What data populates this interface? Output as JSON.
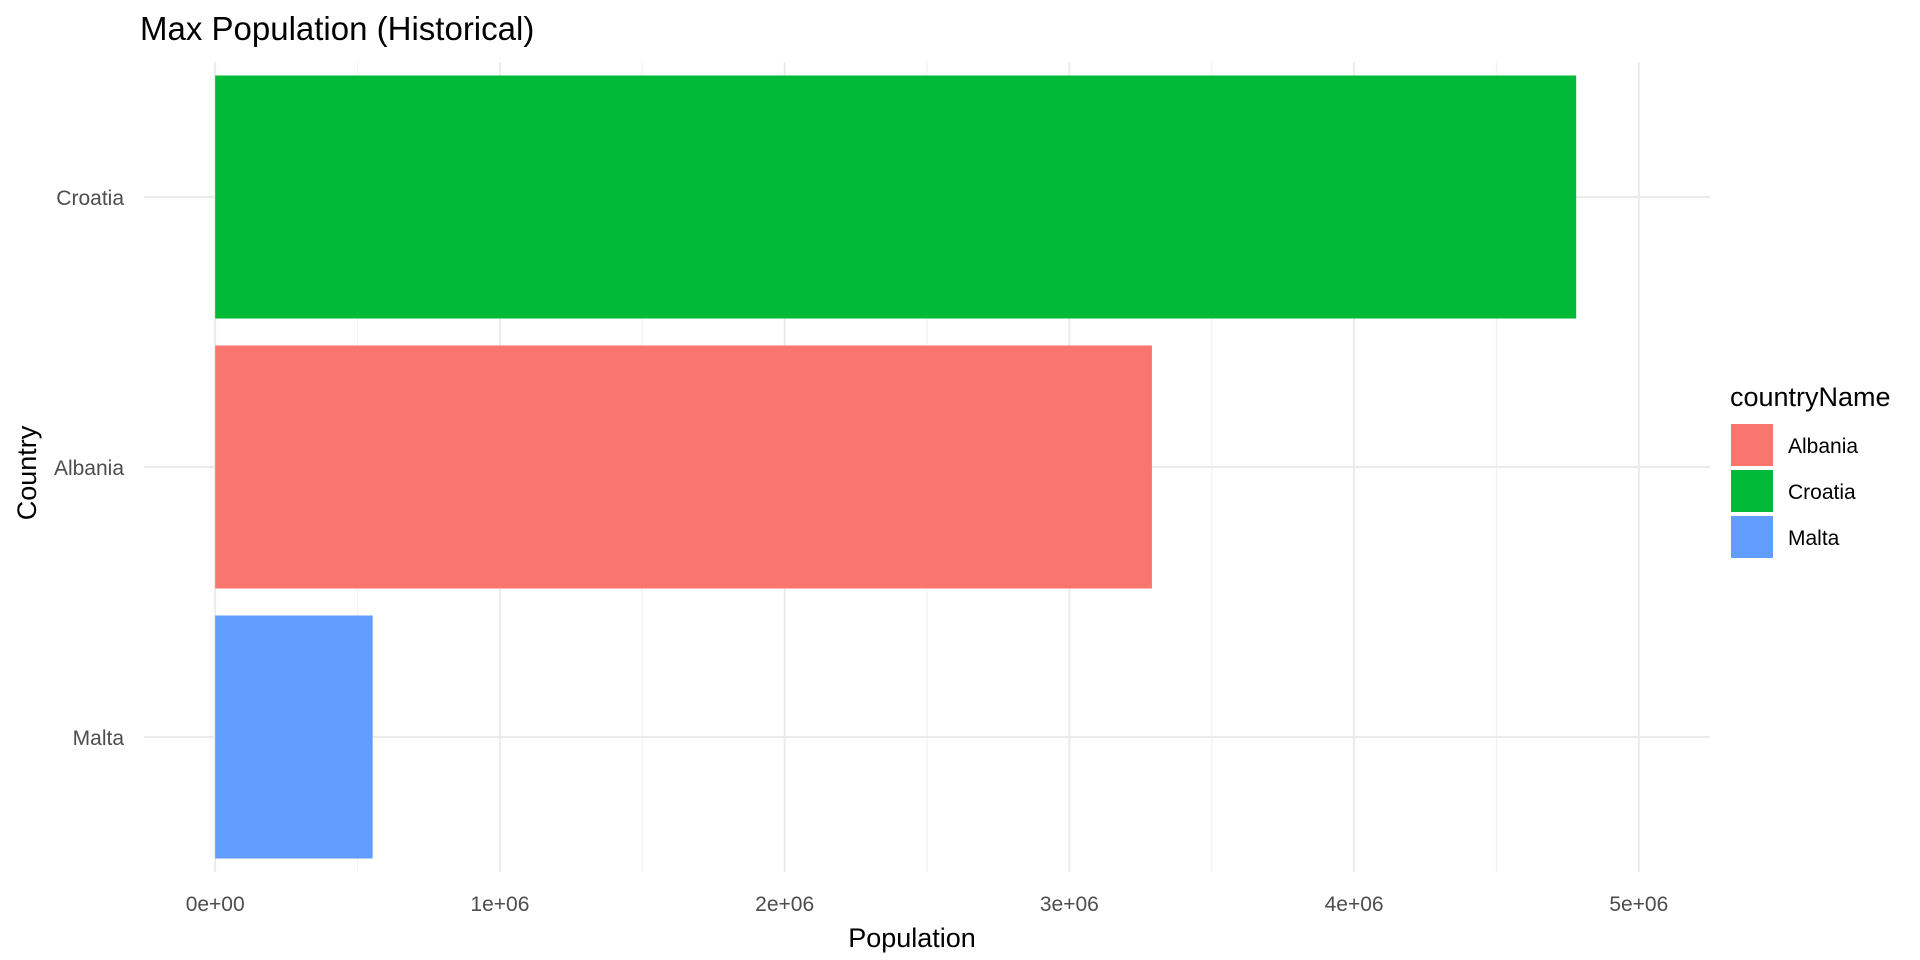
{
  "chart_data": {
    "type": "bar",
    "orientation": "horizontal",
    "title": "Max Population (Historical)",
    "xlabel": "Population",
    "ylabel": "Country",
    "categories": [
      "Malta",
      "Albania",
      "Croatia"
    ],
    "values": [
      553000,
      3290000,
      4780000
    ],
    "colors": {
      "Albania": "#F8766D",
      "Croatia": "#00BA38",
      "Malta": "#619CFF"
    },
    "xlim": [
      -250000,
      5250000
    ],
    "xticks": [
      0,
      1000000,
      2000000,
      3000000,
      4000000,
      5000000
    ],
    "xtick_labels": [
      "0e+00",
      "1e+06",
      "2e+06",
      "3e+06",
      "4e+06",
      "5e+06"
    ],
    "grid": true,
    "legend": {
      "title": "countryName",
      "position": "right",
      "entries": [
        "Albania",
        "Croatia",
        "Malta"
      ]
    }
  }
}
